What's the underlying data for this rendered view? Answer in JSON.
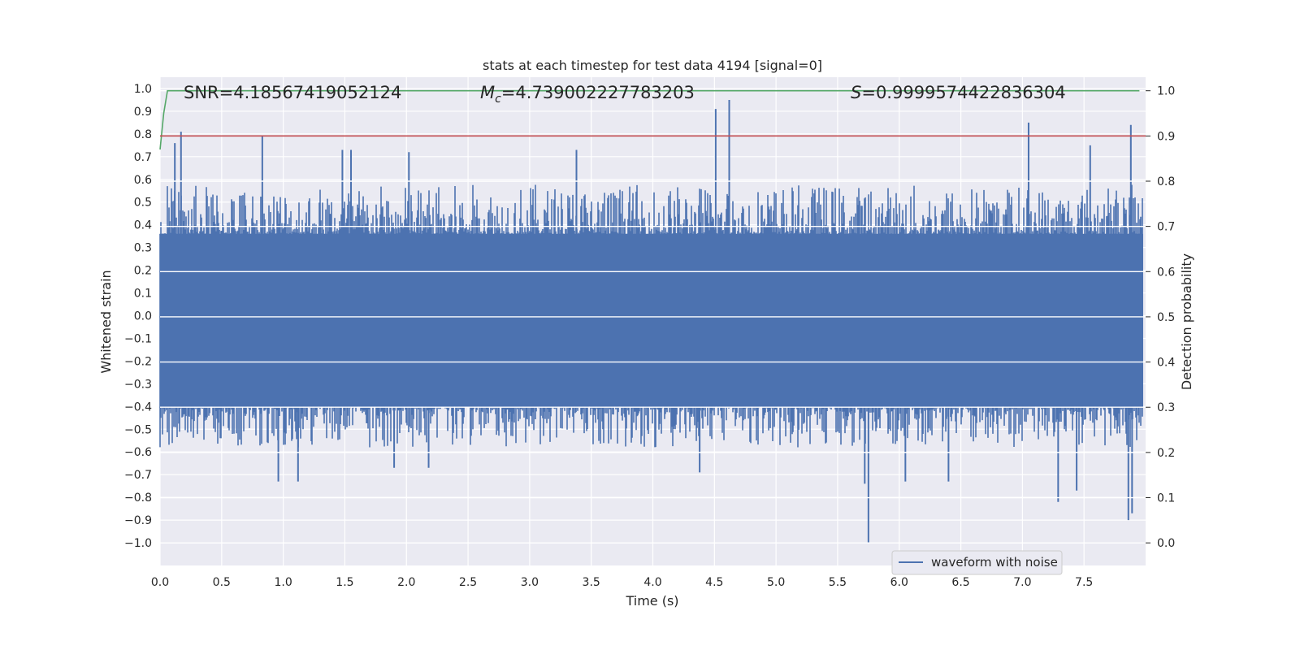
{
  "chart_data": {
    "type": "line",
    "title": "stats at each timestep for test data 4194 [signal=0]",
    "xlabel": "Time (s)",
    "ylabel": "Whitened strain",
    "y2label": "Detection probability",
    "xlim": [
      0.0,
      8.0
    ],
    "ylim": [
      -1.1,
      1.05
    ],
    "y2lim": [
      -0.05,
      1.03
    ],
    "xticks": [
      0.0,
      0.5,
      1.0,
      1.5,
      2.0,
      2.5,
      3.0,
      3.5,
      4.0,
      4.5,
      5.0,
      5.5,
      6.0,
      6.5,
      7.0,
      7.5
    ],
    "xtick_labels": [
      "0.0",
      "0.5",
      "1.0",
      "1.5",
      "2.0",
      "2.5",
      "3.0",
      "3.5",
      "4.0",
      "4.5",
      "5.0",
      "5.5",
      "6.0",
      "6.5",
      "7.0",
      "7.5"
    ],
    "yticks": [
      1.0,
      0.9,
      0.8,
      0.7,
      0.6,
      0.5,
      0.4,
      0.3,
      0.2,
      0.1,
      0.0,
      -0.1,
      -0.2,
      -0.3,
      -0.4,
      -0.5,
      -0.6,
      -0.7,
      -0.8,
      -0.9,
      -1.0
    ],
    "ytick_labels": [
      "1.0",
      "0.9",
      "0.8",
      "0.7",
      "0.6",
      "0.5",
      "0.4",
      "0.3",
      "0.2",
      "0.1",
      "0.0",
      "−0.1",
      "−0.2",
      "−0.3",
      "−0.4",
      "−0.5",
      "−0.6",
      "−0.7",
      "−0.8",
      "−0.9",
      "−1.0"
    ],
    "y2ticks": [
      1.0,
      0.9,
      0.8,
      0.7,
      0.6,
      0.5,
      0.4,
      0.3,
      0.2,
      0.1,
      0.0
    ],
    "y2tick_labels": [
      "1.0",
      "0.9",
      "0.8",
      "0.7",
      "0.6",
      "0.5",
      "0.4",
      "0.3",
      "0.2",
      "0.1",
      "0.0"
    ],
    "grid": true,
    "annotations": {
      "snr": "SNR=4.18567419052124",
      "mc_symbol": "M",
      "mc_sub": "c",
      "mc_value": "=4.739002227783203",
      "s_symbol": "S",
      "s_value": "=0.9999574422836304"
    },
    "series": [
      {
        "name": "waveform with noise",
        "axis": "left",
        "color": "#4c72b0",
        "description": "whitened strain noise, band roughly ±0.35 with spikes",
        "band": [
          -0.4,
          0.36
        ],
        "spikes": [
          {
            "x": 0.17,
            "y": 0.81
          },
          {
            "x": 0.83,
            "y": 0.79
          },
          {
            "x": 0.12,
            "y": 0.76
          },
          {
            "x": 1.48,
            "y": 0.73
          },
          {
            "x": 1.55,
            "y": 0.73
          },
          {
            "x": 2.02,
            "y": 0.72
          },
          {
            "x": 3.38,
            "y": 0.73
          },
          {
            "x": 4.51,
            "y": 0.91
          },
          {
            "x": 4.62,
            "y": 0.95
          },
          {
            "x": 7.05,
            "y": 0.85
          },
          {
            "x": 7.55,
            "y": 0.75
          },
          {
            "x": 7.88,
            "y": 0.84
          },
          {
            "x": 0.96,
            "y": -0.73
          },
          {
            "x": 1.12,
            "y": -0.73
          },
          {
            "x": 1.9,
            "y": -0.67
          },
          {
            "x": 2.18,
            "y": -0.67
          },
          {
            "x": 4.38,
            "y": -0.69
          },
          {
            "x": 5.72,
            "y": -0.74
          },
          {
            "x": 5.75,
            "y": -1.0
          },
          {
            "x": 6.05,
            "y": -0.73
          },
          {
            "x": 6.4,
            "y": -0.73
          },
          {
            "x": 7.29,
            "y": -0.82
          },
          {
            "x": 7.44,
            "y": -0.77
          },
          {
            "x": 7.86,
            "y": -0.9
          },
          {
            "x": 7.89,
            "y": -0.87
          },
          {
            "x": 4.2,
            "y": -0.35
          }
        ]
      },
      {
        "name": "detection probability",
        "axis": "right",
        "color": "#55a868",
        "x": [
          0.0,
          0.03,
          0.06,
          0.1,
          0.5,
          1.0,
          2.0,
          3.0,
          4.0,
          5.0,
          6.0,
          7.0,
          7.5,
          7.95
        ],
        "values": [
          0.87,
          0.95,
          1.0,
          1.0,
          1.0,
          1.0,
          1.0,
          1.0,
          1.0,
          1.0,
          1.0,
          1.0,
          1.0,
          1.0
        ]
      },
      {
        "name": "threshold",
        "axis": "right",
        "color": "#c44e52",
        "x": [
          0.0,
          8.0
        ],
        "values": [
          0.9,
          0.9
        ]
      }
    ],
    "legend": {
      "placement": "lower-right",
      "entries": [
        {
          "label": "waveform with noise",
          "color": "#4c72b0"
        }
      ]
    }
  }
}
